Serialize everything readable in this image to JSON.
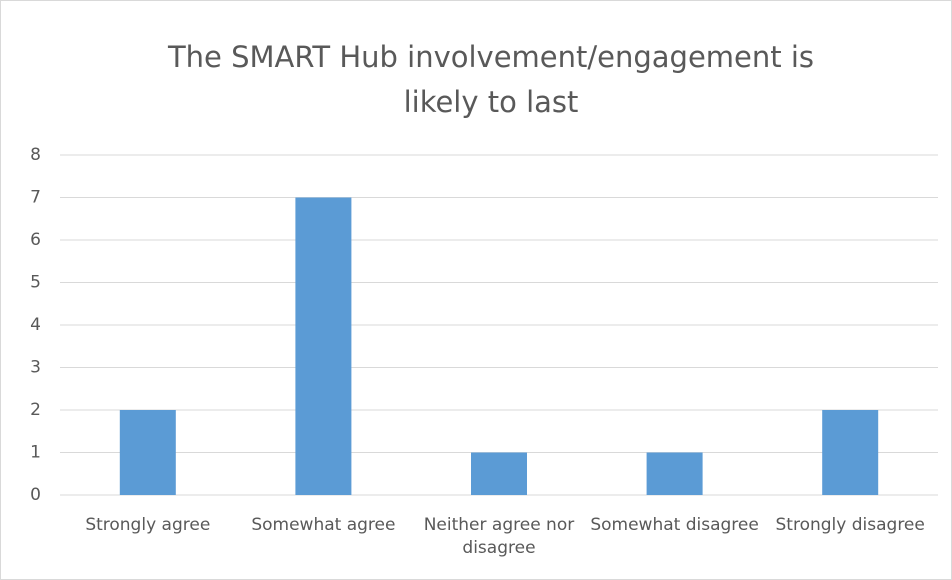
{
  "chart_data": {
    "type": "bar",
    "title": "The SMART Hub involvement/engagement is likely to last",
    "categories": [
      "Strongly agree",
      "Somewhat agree",
      "Neither agree nor disagree",
      "Somewhat disagree",
      "Strongly disagree"
    ],
    "values": [
      2,
      7,
      1,
      1,
      2
    ],
    "color": "#5b9bd5",
    "ylim": [
      0,
      8
    ],
    "yticks": [
      0,
      1,
      2,
      3,
      4,
      5,
      6,
      7,
      8
    ],
    "grid": true
  }
}
